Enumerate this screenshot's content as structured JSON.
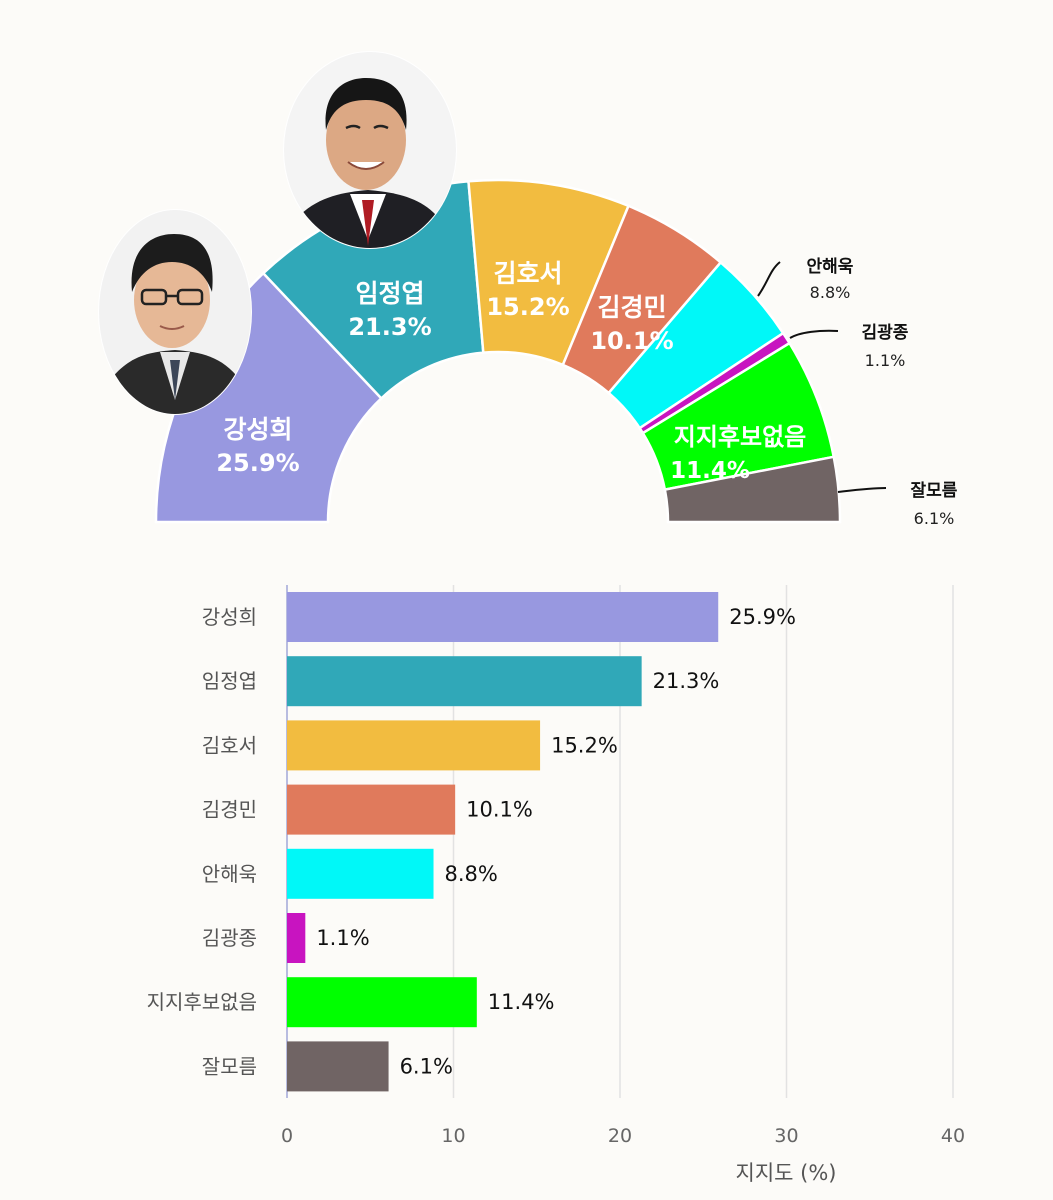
{
  "chart_data": [
    {
      "type": "pie",
      "variant": "half-donut",
      "categories": [
        "강성희",
        "임정엽",
        "김호서",
        "김경민",
        "안해욱",
        "김광종",
        "지지후보없음",
        "잘모름"
      ],
      "values": [
        25.9,
        21.3,
        15.2,
        10.1,
        8.8,
        1.1,
        11.4,
        6.1
      ],
      "labels": [
        "25.9%",
        "21.3%",
        "15.2%",
        "10.1%",
        "8.8%",
        "1.1%",
        "11.4%",
        "6.1%"
      ],
      "colors": [
        "#9898e0",
        "#30a8b8",
        "#f2bc40",
        "#e07a5c",
        "#00f8f8",
        "#c814c0",
        "#00ff00",
        "#706464"
      ],
      "photos": [
        "portrait-강성희",
        "portrait-임정엽"
      ]
    },
    {
      "type": "bar",
      "orientation": "horizontal",
      "categories": [
        "강성희",
        "임정엽",
        "김호서",
        "김경민",
        "안해욱",
        "김광종",
        "지지후보없음",
        "잘모름"
      ],
      "values": [
        25.9,
        21.3,
        15.2,
        10.1,
        8.8,
        1.1,
        11.4,
        6.1
      ],
      "labels": [
        "25.9%",
        "21.3%",
        "15.2%",
        "10.1%",
        "8.8%",
        "1.1%",
        "11.4%",
        "6.1%"
      ],
      "colors": [
        "#9898e0",
        "#30a8b8",
        "#f2bc40",
        "#e07a5c",
        "#00f8f8",
        "#c814c0",
        "#00ff00",
        "#706464"
      ],
      "xlim": [
        0,
        40
      ],
      "xticks": [
        "0",
        "10",
        "20",
        "30",
        "40"
      ],
      "xlabel": "지지도 (%)",
      "ylabel": "",
      "grid": true
    }
  ]
}
